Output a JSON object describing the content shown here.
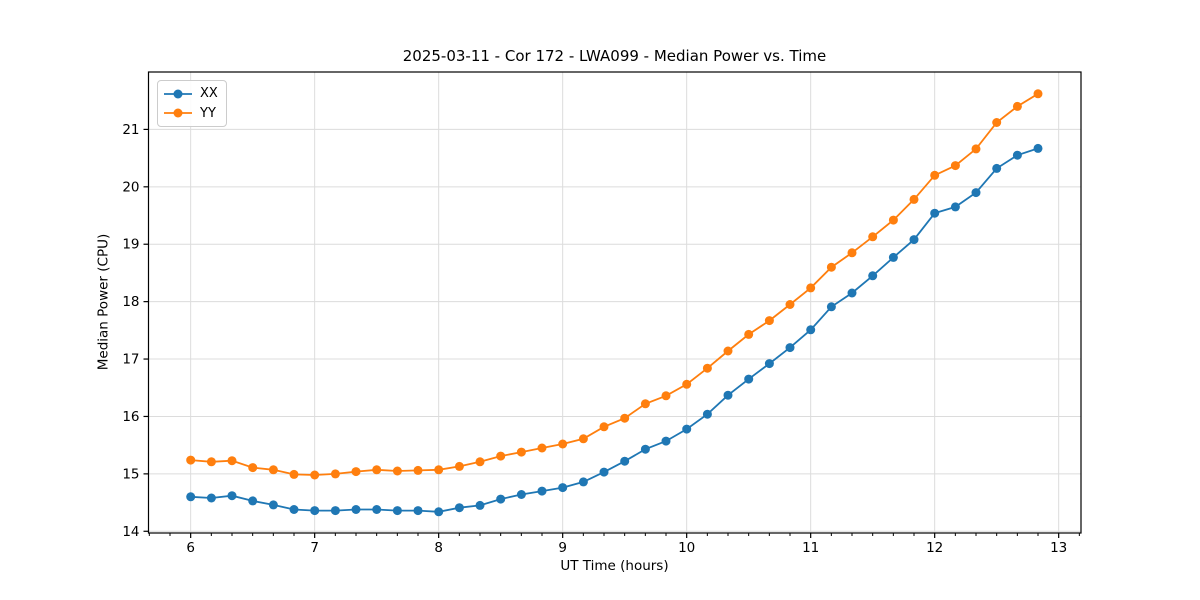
{
  "chart_data": {
    "type": "line",
    "title": "2025-03-11 - Cor 172 - LWA099 - Median Power vs. Time",
    "xlabel": "UT Time (hours)",
    "ylabel": "Median Power (CPU)",
    "xlim": [
      5.66,
      13.18
    ],
    "ylim": [
      13.97,
      22.0
    ],
    "x_ticks": [
      6,
      7,
      8,
      9,
      10,
      11,
      12,
      13
    ],
    "y_ticks": [
      14,
      15,
      16,
      17,
      18,
      19,
      20,
      21
    ],
    "x_minor_tick_step_minutes": 10,
    "grid": true,
    "legend_position": "upper-left",
    "grid_color": "#dcdcdc",
    "spine_color": "#000000",
    "x": [
      6.0,
      6.167,
      6.333,
      6.5,
      6.667,
      6.833,
      7.0,
      7.167,
      7.333,
      7.5,
      7.667,
      7.833,
      8.0,
      8.167,
      8.333,
      8.5,
      8.667,
      8.833,
      9.0,
      9.167,
      9.333,
      9.5,
      9.667,
      9.833,
      10.0,
      10.167,
      10.333,
      10.5,
      10.667,
      10.833,
      11.0,
      11.167,
      11.333,
      11.5,
      11.667,
      11.833,
      12.0,
      12.167,
      12.333,
      12.5,
      12.667,
      12.833
    ],
    "series": [
      {
        "name": "XX",
        "color": "#1f77b4",
        "values": [
          14.6,
          14.58,
          14.62,
          14.53,
          14.46,
          14.38,
          14.36,
          14.36,
          14.38,
          14.38,
          14.36,
          14.36,
          14.34,
          14.41,
          14.45,
          14.56,
          14.64,
          14.7,
          14.76,
          14.86,
          15.03,
          15.22,
          15.43,
          15.57,
          15.78,
          16.04,
          16.37,
          16.65,
          16.92,
          17.2,
          17.51,
          17.91,
          18.15,
          18.45,
          18.77,
          19.08,
          19.54,
          19.65,
          19.9,
          20.32,
          20.55,
          20.67
        ]
      },
      {
        "name": "YY",
        "color": "#ff7f0e",
        "values": [
          15.24,
          15.21,
          15.23,
          15.11,
          15.07,
          14.99,
          14.98,
          15.0,
          15.04,
          15.07,
          15.05,
          15.06,
          15.07,
          15.13,
          15.21,
          15.31,
          15.38,
          15.45,
          15.52,
          15.61,
          15.82,
          15.97,
          16.22,
          16.36,
          16.56,
          16.84,
          17.14,
          17.43,
          17.67,
          17.95,
          18.24,
          18.6,
          18.85,
          19.13,
          19.42,
          19.78,
          20.2,
          20.37,
          20.66,
          21.12,
          21.4,
          21.62
        ]
      }
    ]
  }
}
